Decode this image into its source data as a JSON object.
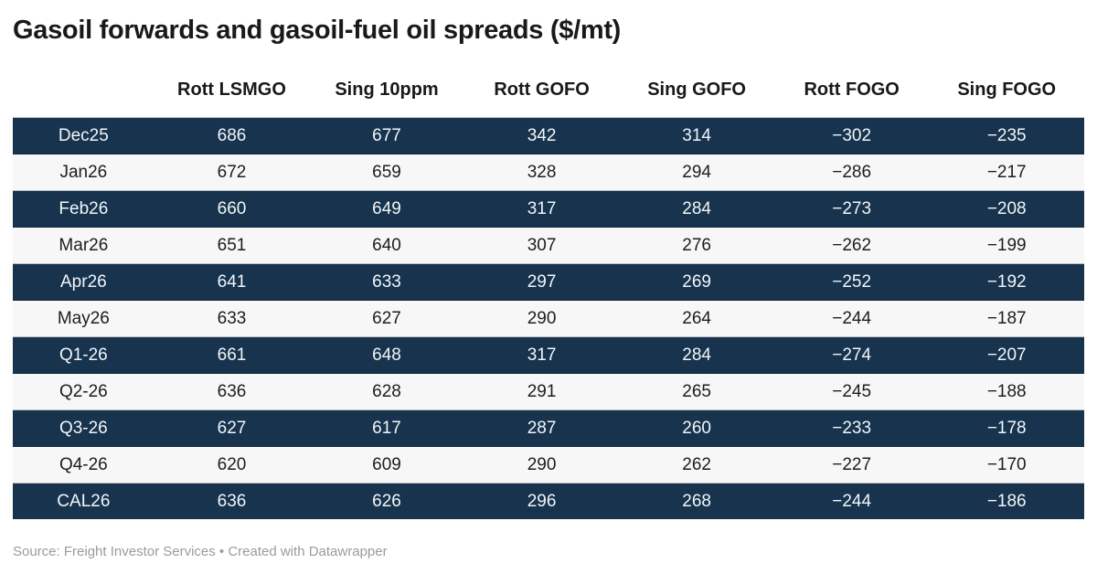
{
  "title": "Gasoil forwards and gasoil-fuel oil spreads ($/mt)",
  "footer": "Source: Freight Investor Services • Created with Datawrapper",
  "colors": {
    "dark_row_bg": "#17334d",
    "dark_row_text": "#f2f6f9",
    "light_row_bg": "#f7f7f7",
    "light_row_text": "#1d1d1d",
    "title_text": "#191919",
    "footer_text": "#9b9b9b"
  },
  "chart_data": {
    "type": "table",
    "title": "Gasoil forwards and gasoil-fuel oil spreads ($/mt)",
    "columns": [
      "",
      "Rott LSMGO",
      "Sing 10ppm",
      "Rott GOFO",
      "Sing GOFO",
      "Rott FOGO",
      "Sing FOGO"
    ],
    "rows": [
      {
        "label": "Dec25",
        "values": [
          686,
          677,
          342,
          314,
          -302,
          -235
        ]
      },
      {
        "label": "Jan26",
        "values": [
          672,
          659,
          328,
          294,
          -286,
          -217
        ]
      },
      {
        "label": "Feb26",
        "values": [
          660,
          649,
          317,
          284,
          -273,
          -208
        ]
      },
      {
        "label": "Mar26",
        "values": [
          651,
          640,
          307,
          276,
          -262,
          -199
        ]
      },
      {
        "label": "Apr26",
        "values": [
          641,
          633,
          297,
          269,
          -252,
          -192
        ]
      },
      {
        "label": "May26",
        "values": [
          633,
          627,
          290,
          264,
          -244,
          -187
        ]
      },
      {
        "label": "Q1-26",
        "values": [
          661,
          648,
          317,
          284,
          -274,
          -207
        ]
      },
      {
        "label": "Q2-26",
        "values": [
          636,
          628,
          291,
          265,
          -245,
          -188
        ]
      },
      {
        "label": "Q3-26",
        "values": [
          627,
          617,
          287,
          260,
          -233,
          -178
        ]
      },
      {
        "label": "Q4-26",
        "values": [
          620,
          609,
          290,
          262,
          -227,
          -170
        ]
      },
      {
        "label": "CAL26",
        "values": [
          636,
          626,
          296,
          268,
          -244,
          -186
        ]
      }
    ],
    "layout_hints": {
      "striping": "alternating dark navy / light gray starting dark",
      "alignment": "all cells centered",
      "grid": "thin horizontal rules between rows only"
    }
  }
}
